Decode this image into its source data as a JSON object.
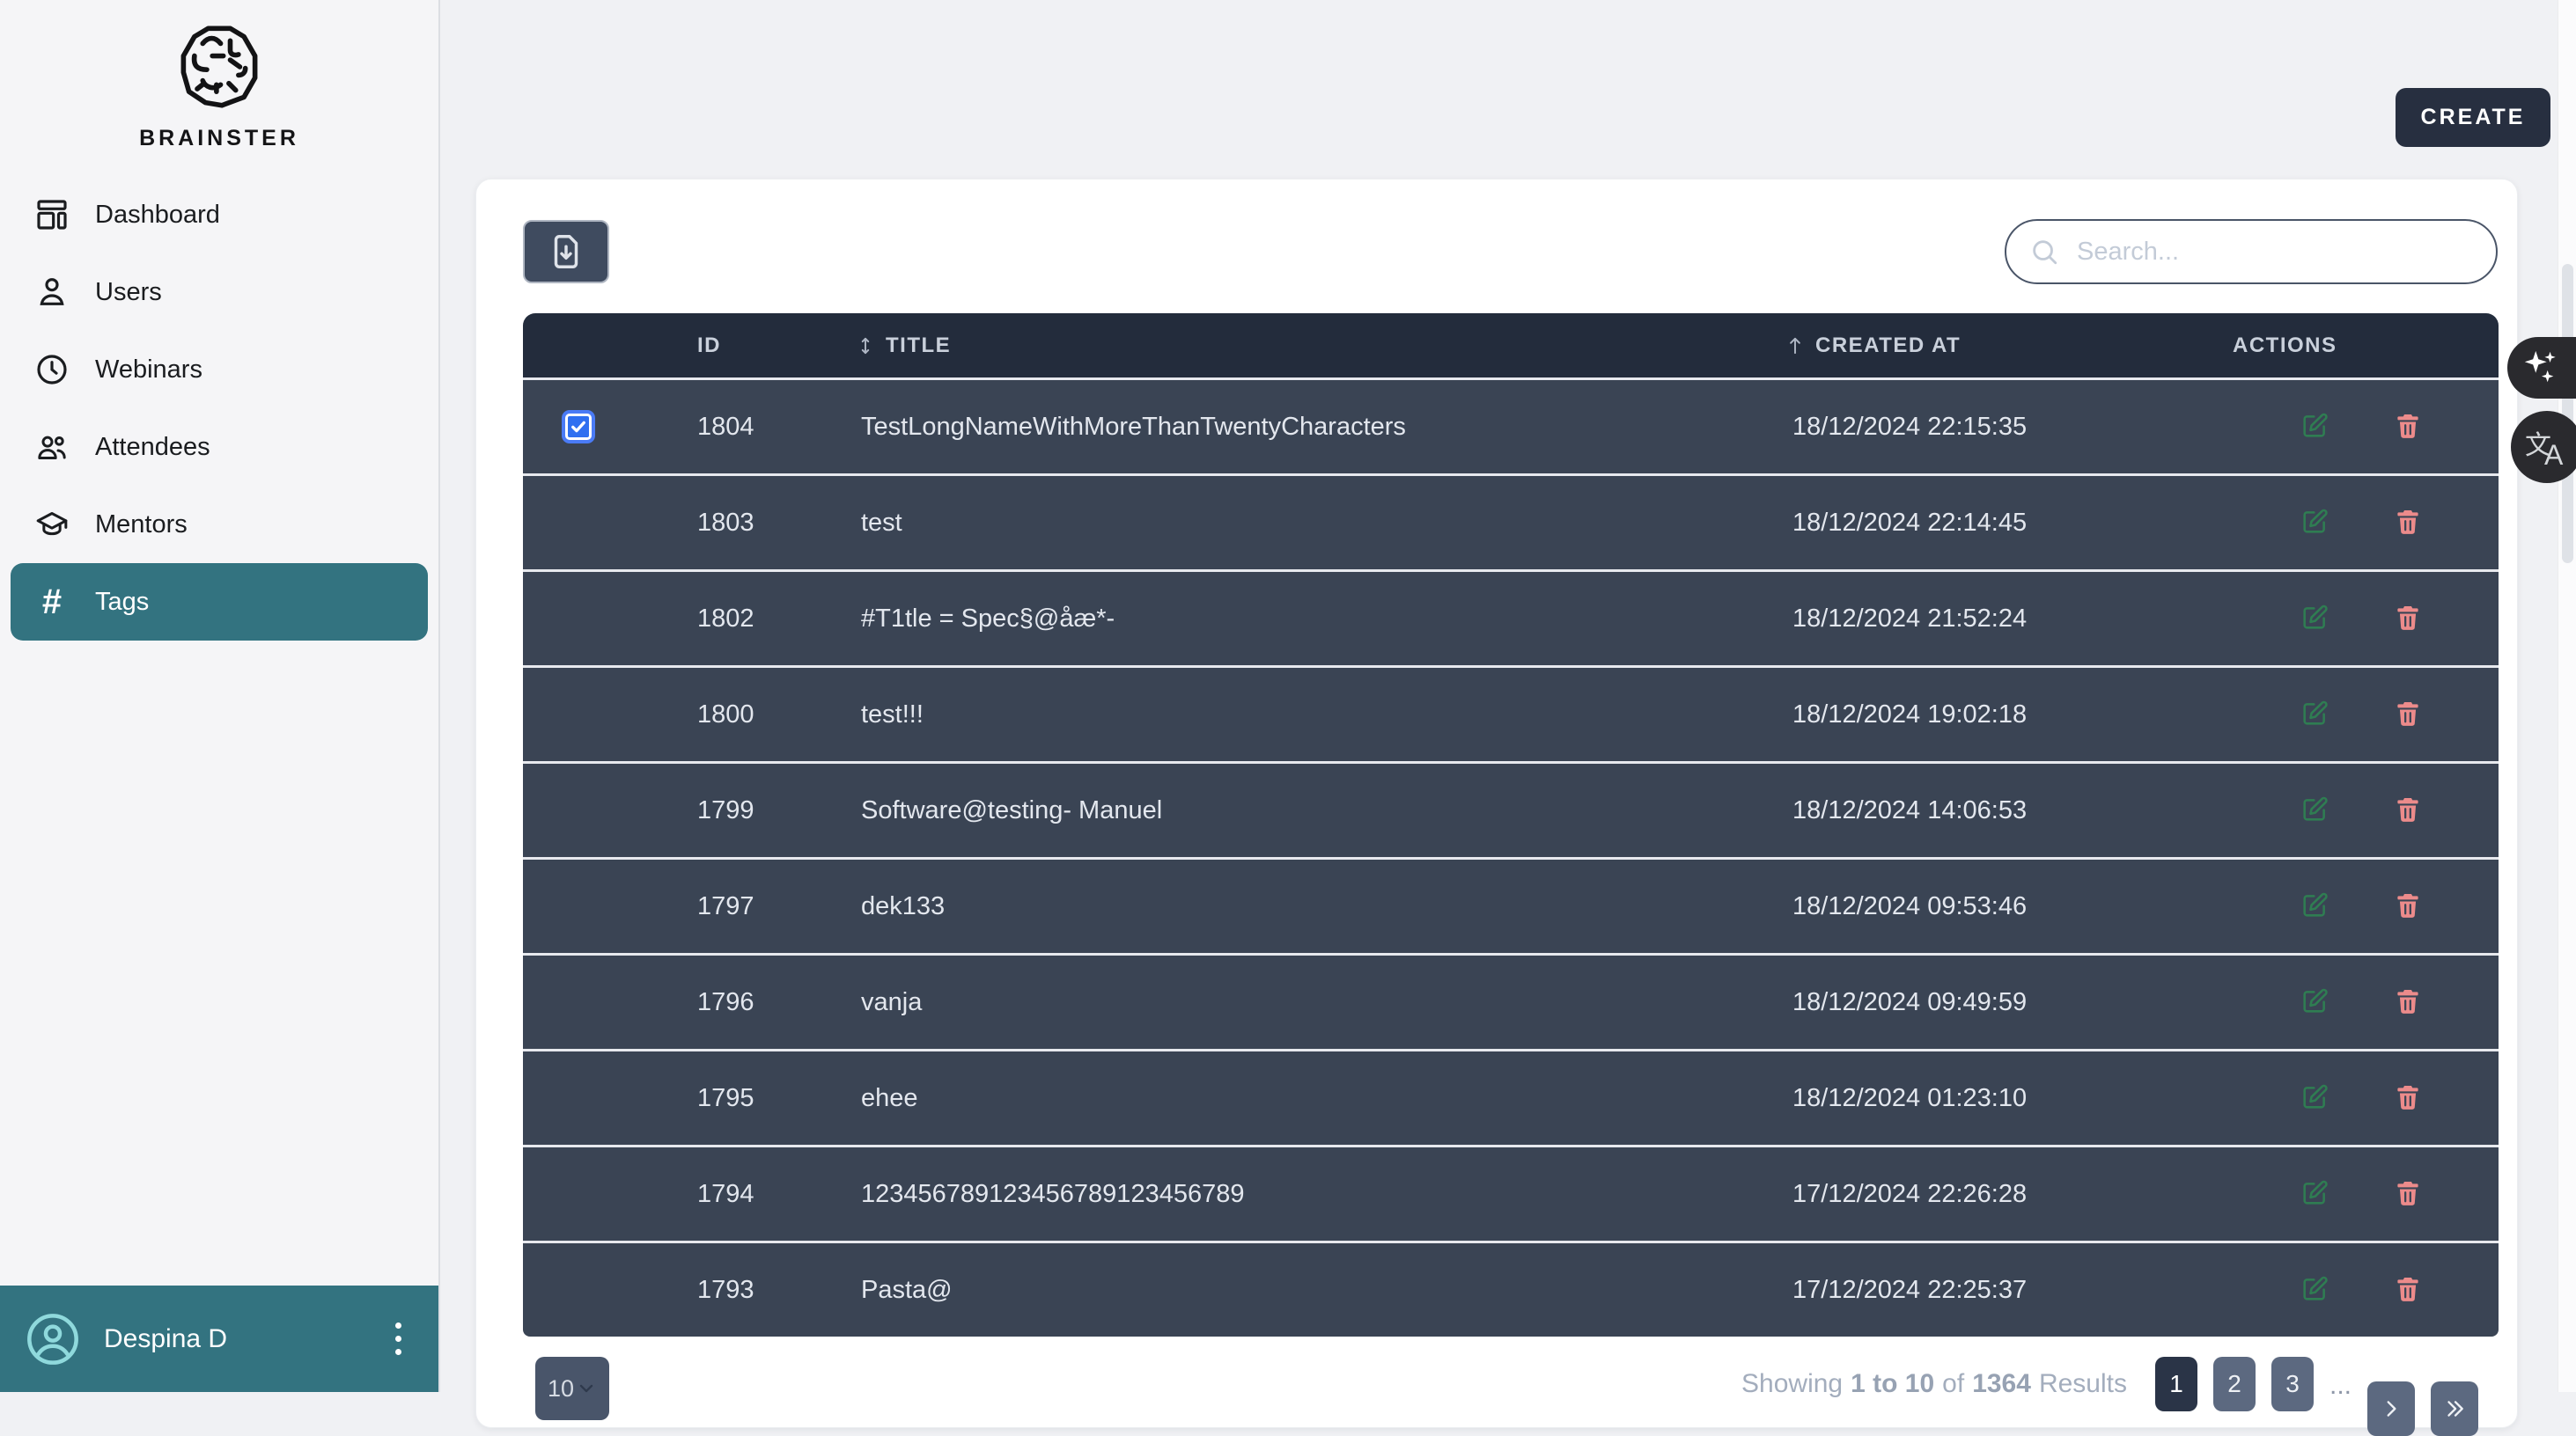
{
  "brand": {
    "name": "BRAINSTER",
    "logo_icon": "brain-maze-icon"
  },
  "sidebar": {
    "items": [
      {
        "label": "Dashboard",
        "icon": "dashboard-icon",
        "active": false
      },
      {
        "label": "Users",
        "icon": "user-icon",
        "active": false
      },
      {
        "label": "Webinars",
        "icon": "clock-icon",
        "active": false
      },
      {
        "label": "Attendees",
        "icon": "attendees-icon",
        "active": false
      },
      {
        "label": "Mentors",
        "icon": "mentor-cap-icon",
        "active": false
      },
      {
        "label": "Tags",
        "icon": "hash-icon",
        "active": true
      }
    ],
    "user": {
      "name": "Despina D",
      "avatar_icon": "user-circle-icon",
      "menu_icon": "kebab-menu-icon"
    }
  },
  "header": {
    "create_label": "CREATE"
  },
  "toolbar": {
    "export_icon": "file-download-icon",
    "search_icon": "search-icon",
    "search_placeholder": "Search...",
    "search_value": ""
  },
  "table": {
    "columns": {
      "id": "ID",
      "title": "TITLE",
      "created_at": "CREATED AT",
      "actions": "ACTIONS"
    },
    "sort_icons": {
      "title": "sort-both-icon",
      "created_at": "arrow-up-icon"
    },
    "action_icons": {
      "edit": "edit-icon",
      "delete": "trash-icon"
    },
    "rows": [
      {
        "id": "1804",
        "title": "TestLongNameWithMoreThanTwentyCharacters",
        "created_at": "18/12/2024 22:15:35",
        "checked": true
      },
      {
        "id": "1803",
        "title": "test",
        "created_at": "18/12/2024 22:14:45",
        "checked": false
      },
      {
        "id": "1802",
        "title": "#T1tle = Spec§@åæ*-",
        "created_at": "18/12/2024 21:52:24",
        "checked": false
      },
      {
        "id": "1800",
        "title": "test!!!",
        "created_at": "18/12/2024 19:02:18",
        "checked": false
      },
      {
        "id": "1799",
        "title": "Software@testing- Manuel",
        "created_at": "18/12/2024 14:06:53",
        "checked": false
      },
      {
        "id": "1797",
        "title": "dek133",
        "created_at": "18/12/2024 09:53:46",
        "checked": false
      },
      {
        "id": "1796",
        "title": "vanja",
        "created_at": "18/12/2024 09:49:59",
        "checked": false
      },
      {
        "id": "1795",
        "title": "ehee",
        "created_at": "18/12/2024 01:23:10",
        "checked": false
      },
      {
        "id": "1794",
        "title": "123456789123456789123456789",
        "created_at": "17/12/2024 22:26:28",
        "checked": false
      },
      {
        "id": "1793",
        "title": "Pasta@",
        "created_at": "17/12/2024 22:25:37",
        "checked": false
      }
    ]
  },
  "pagination": {
    "page_size": "10",
    "summary": {
      "prefix": "Showing",
      "range": "1 to 10",
      "mid": "of",
      "total": "1364",
      "suffix": "Results"
    },
    "pages": [
      {
        "label": "1",
        "active": true
      },
      {
        "label": "2",
        "active": false
      },
      {
        "label": "3",
        "active": false
      }
    ],
    "ellipsis": "...",
    "next_icon": "chevron-right-icon",
    "last_icon": "chevrons-right-icon"
  },
  "floating": {
    "assistant_icon": "sparkles-icon",
    "translate_icon": "translate-icon"
  },
  "colors": {
    "sidebar_bg": "#f5f5f7",
    "accent_teal": "#337380",
    "avatar_teal": "#8fd9dc",
    "create_btn_bg": "#272f40",
    "table_header_bg": "#232c3c",
    "row_bg": "#3a4454",
    "row_divider": "#e7e9ee",
    "checkbox_checked": "#2f6ff0",
    "edit_icon": "#2f7d52",
    "delete_icon": "#ec8b8b",
    "page_btn_active": "#2a3447",
    "page_btn": "#5c6980"
  }
}
